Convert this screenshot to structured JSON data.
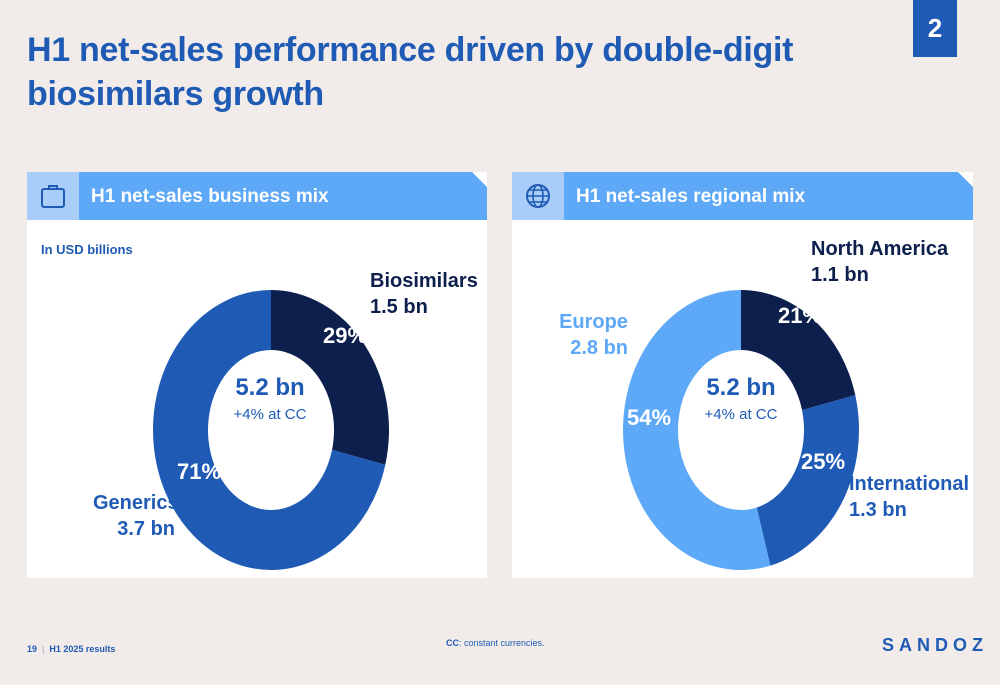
{
  "page": {
    "title": "H1 net-sales performance driven by double-digit biosimilars growth",
    "badge": "2",
    "footer_page": "19",
    "footer_label": "H1 2025 results",
    "footnote_bold": "CC",
    "footnote_text": ": constant currencies.",
    "logo": "SANDOZ"
  },
  "colors": {
    "dark": "#0d1f4d",
    "mid": "#1f5bb5",
    "light": "#5ea8f8",
    "header": "#5ea8f8",
    "header_icon_box": "#a9cdf9"
  },
  "left_panel": {
    "header": "H1 net-sales business mix",
    "icon": "briefcase-icon",
    "unit": "In USD billions",
    "center_value": "5.2 bn",
    "center_sub": "+4% at CC"
  },
  "right_panel": {
    "header": "H1 net-sales regional mix",
    "icon": "globe-icon",
    "center_value": "5.2 bn",
    "center_sub": "+4% at CC"
  },
  "chart_data": [
    {
      "type": "pie",
      "donut": true,
      "slices": [
        {
          "name": "Biosimilars",
          "value_label": "1.5 bn",
          "value": 1.5,
          "percent": 29,
          "percent_label": "29%",
          "color": "#0d1f4d"
        },
        {
          "name": "Generics",
          "value_label": "3.7 bn",
          "value": 3.7,
          "percent": 71,
          "percent_label": "71%",
          "color": "#1f5bb5"
        }
      ]
    },
    {
      "type": "pie",
      "donut": true,
      "slices": [
        {
          "name": "North America",
          "value_label": "1.1 bn",
          "value": 1.1,
          "percent": 21,
          "percent_label": "21%",
          "color": "#0d1f4d"
        },
        {
          "name": "International",
          "value_label": "1.3 bn",
          "value": 1.3,
          "percent": 25,
          "percent_label": "25%",
          "color": "#1f5bb5"
        },
        {
          "name": "Europe",
          "value_label": "2.8 bn",
          "value": 2.8,
          "percent": 54,
          "percent_label": "54%",
          "color": "#5ea8f8"
        }
      ]
    }
  ]
}
